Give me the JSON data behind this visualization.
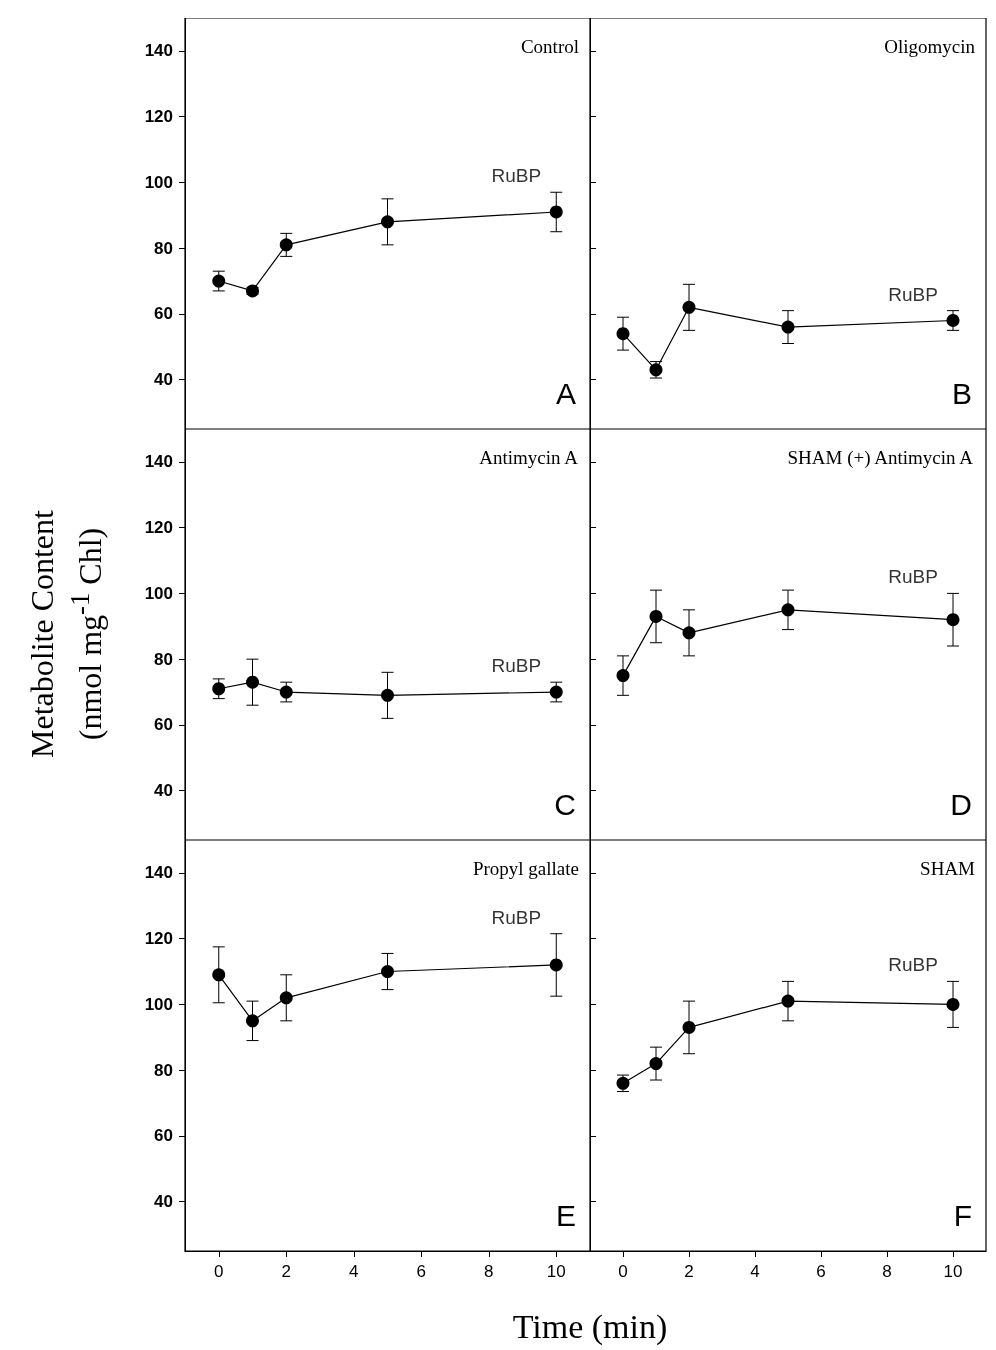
{
  "chart_data": [
    {
      "type": "line",
      "title": "Control",
      "x": [
        0,
        1,
        2,
        5,
        10
      ],
      "xlim": [
        -1,
        11
      ],
      "xticks": [
        0,
        2,
        4,
        6,
        8,
        10
      ],
      "ylim": [
        25,
        150
      ],
      "yticks": [
        40,
        60,
        80,
        100,
        120,
        140
      ],
      "tick_labels": "y",
      "marker": "circle",
      "line_style": "solid",
      "series": [
        {
          "color": "#000000",
          "values": [
            70,
            67,
            81,
            88,
            91
          ],
          "errors": [
            3,
            1,
            3.5,
            7,
            6
          ]
        }
      ],
      "annotations": [
        "RuBP",
        "A"
      ]
    },
    {
      "type": "line",
      "title": "Oligomycin",
      "x": [
        0,
        1,
        2,
        5,
        10
      ],
      "xlim": [
        -1,
        11
      ],
      "xticks": [
        0,
        2,
        4,
        6,
        8,
        10
      ],
      "ylim": [
        25,
        150
      ],
      "yticks": [
        40,
        60,
        80,
        100,
        120,
        140
      ],
      "tick_labels": false,
      "marker": "circle",
      "line_style": "solid",
      "series": [
        {
          "color": "#000000",
          "values": [
            54,
            43,
            62,
            56,
            58
          ],
          "errors": [
            5,
            2.5,
            7,
            5,
            3
          ]
        }
      ],
      "annotations": [
        "RuBP",
        "B"
      ]
    },
    {
      "type": "line",
      "title": "Antimycin A",
      "x": [
        0,
        1,
        2,
        5,
        10
      ],
      "xlim": [
        -1,
        11
      ],
      "xticks": [
        0,
        2,
        4,
        6,
        8,
        10
      ],
      "ylim": [
        25,
        150
      ],
      "yticks": [
        40,
        60,
        80,
        100,
        120,
        140
      ],
      "tick_labels": "y",
      "marker": "circle",
      "line_style": "solid",
      "ylabel": "Metabolite Content (nmol mg$^{-1}$ Chl)",
      "series": [
        {
          "color": "#000000",
          "values": [
            71,
            73,
            70,
            69,
            70
          ],
          "errors": [
            3,
            7,
            3,
            7,
            3
          ]
        }
      ],
      "annotations": [
        "RuBP",
        "C"
      ]
    },
    {
      "type": "line",
      "title": "SHAM (+) Antimycin A",
      "x": [
        0,
        1,
        2,
        5,
        10
      ],
      "xlim": [
        -1,
        11
      ],
      "xticks": [
        0,
        2,
        4,
        6,
        8,
        10
      ],
      "ylim": [
        25,
        150
      ],
      "yticks": [
        40,
        60,
        80,
        100,
        120,
        140
      ],
      "tick_labels": false,
      "marker": "circle",
      "line_style": "solid",
      "series": [
        {
          "color": "#000000",
          "values": [
            75,
            93,
            88,
            95,
            92
          ],
          "errors": [
            6,
            8,
            7,
            6,
            8
          ]
        }
      ],
      "annotations": [
        "RuBP",
        "D"
      ]
    },
    {
      "type": "line",
      "title": "Propyl gallate",
      "x": [
        0,
        1,
        2,
        5,
        10
      ],
      "xlim": [
        -1,
        11
      ],
      "xticks": [
        0,
        2,
        4,
        6,
        8,
        10
      ],
      "ylim": [
        25,
        150
      ],
      "yticks": [
        40,
        60,
        80,
        100,
        120,
        140
      ],
      "marker": "circle",
      "line_style": "solid",
      "xlabel": "Time (min)",
      "series": [
        {
          "color": "#000000",
          "values": [
            109,
            95,
            102,
            110,
            112
          ],
          "errors": [
            8.5,
            6,
            7,
            5.5,
            9.5
          ]
        }
      ],
      "annotations": [
        "RuBP",
        "E"
      ]
    },
    {
      "type": "line",
      "title": "SHAM",
      "x": [
        0,
        1,
        2,
        5,
        10
      ],
      "xlim": [
        -1,
        11
      ],
      "xticks": [
        0,
        2,
        4,
        6,
        8,
        10
      ],
      "ylim": [
        25,
        150
      ],
      "yticks": [
        40,
        60,
        80,
        100,
        120,
        140
      ],
      "tick_labels": "x",
      "marker": "circle",
      "line_style": "solid",
      "series": [
        {
          "color": "#000000",
          "values": [
            76,
            82,
            93,
            101,
            100
          ],
          "errors": [
            2.5,
            5,
            8,
            6,
            7
          ]
        }
      ],
      "annotations": [
        "RuBP",
        "F"
      ]
    }
  ]
}
